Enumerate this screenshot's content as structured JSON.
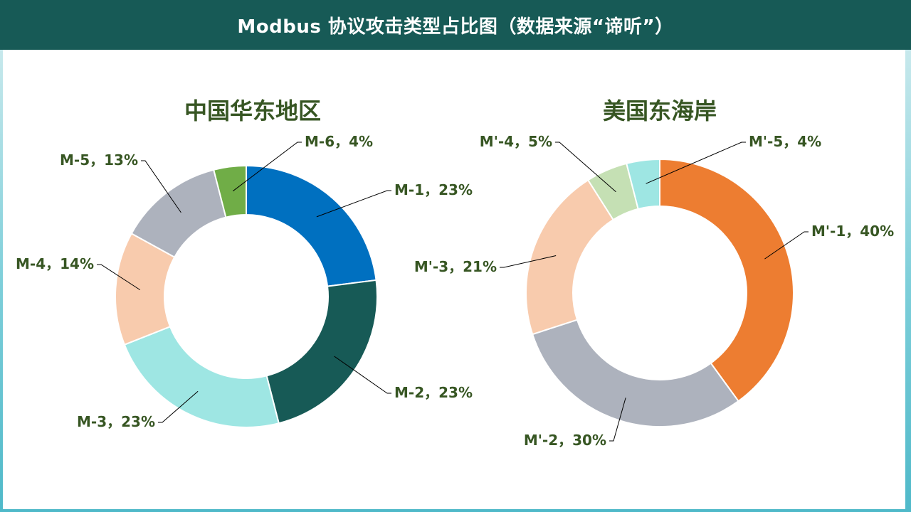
{
  "header": {
    "title": "Modbus 协议攻击类型占比图（数据来源“谛听”）"
  },
  "chart_data": [
    {
      "type": "pie",
      "title": "中国华东地区",
      "categories": [
        "M-1",
        "M-2",
        "M-3",
        "M-4",
        "M-5",
        "M-6"
      ],
      "values": [
        23,
        23,
        23,
        14,
        13,
        4
      ],
      "labels": [
        "M-1，23%",
        "M-2，23%",
        "M-3，23%",
        "M-4，14%",
        "M-5，13%",
        "M-6，4%"
      ],
      "colors": [
        "#0070c0",
        "#175a56",
        "#9ee6e3",
        "#f8cbad",
        "#adb2bd",
        "#70ad47"
      ],
      "donut": true
    },
    {
      "type": "pie",
      "title": "美国东海岸",
      "categories": [
        "M'-1",
        "M'-2",
        "M'-3",
        "M'-4",
        "M'-5"
      ],
      "values": [
        40,
        30,
        21,
        5,
        4
      ],
      "labels": [
        "M'-1，40%",
        "M'-2，30%",
        "M'-3，21%",
        "M'-4，5%",
        "M'-5，4%"
      ],
      "colors": [
        "#ed7d31",
        "#adb2bd",
        "#f8cbad",
        "#c5e0b4",
        "#9ee6e3"
      ],
      "donut": true
    }
  ]
}
